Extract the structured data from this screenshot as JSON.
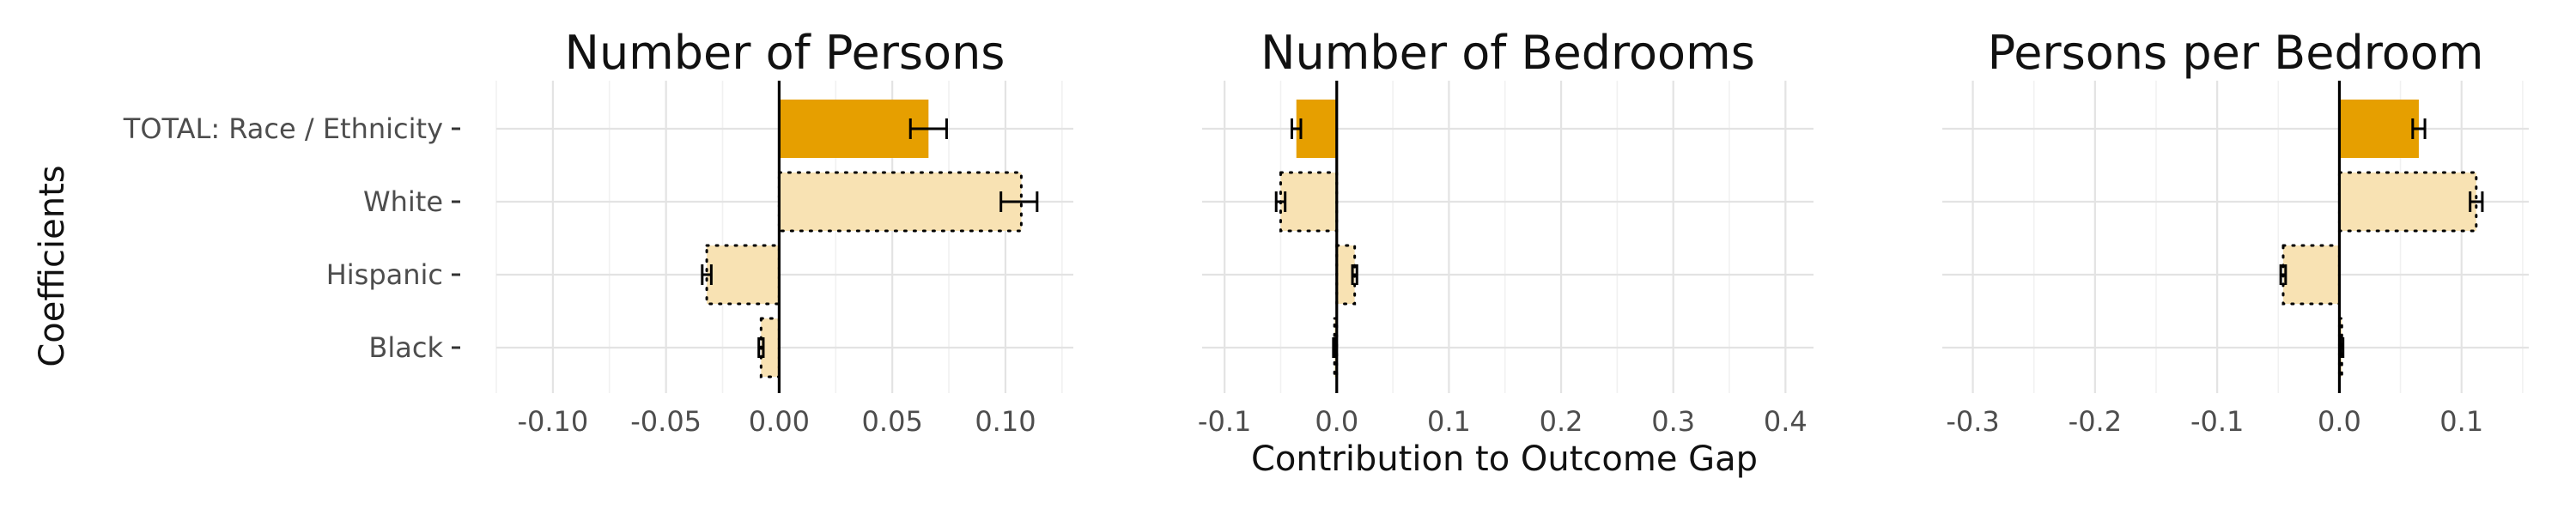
{
  "figure": {
    "ylabel": "Coefficients",
    "xlabel": "Contribution to Outcome Gap",
    "categories": [
      "TOTAL: Race / Ethnicity",
      "White",
      "Hispanic",
      "Black"
    ],
    "colors": {
      "total_fill": "#E69F00",
      "component_fill": "#F8E2B3",
      "error_bar": "#000000",
      "zero_line": "#000000",
      "grid": "#E3E3E3"
    }
  },
  "chart_data": [
    {
      "type": "bar",
      "orientation": "horizontal",
      "title": "Number of Persons",
      "categories": [
        "TOTAL: Race / Ethnicity",
        "White",
        "Hispanic",
        "Black"
      ],
      "values": [
        0.066,
        0.107,
        -0.032,
        -0.008
      ],
      "error_low": [
        0.058,
        0.098,
        -0.034,
        -0.009
      ],
      "error_high": [
        0.074,
        0.114,
        -0.03,
        -0.007
      ],
      "xlim": [
        -0.125,
        0.13
      ],
      "ticks": [
        -0.1,
        -0.05,
        0.0,
        0.05,
        0.1
      ],
      "tick_labels": [
        "-0.10",
        "-0.05",
        "0.00",
        "0.05",
        "0.10"
      ]
    },
    {
      "type": "bar",
      "orientation": "horizontal",
      "title": "Number of Bedrooms",
      "categories": [
        "TOTAL: Race / Ethnicity",
        "White",
        "Hispanic",
        "Black"
      ],
      "values": [
        -0.036,
        -0.05,
        0.016,
        -0.002
      ],
      "error_low": [
        -0.04,
        -0.054,
        0.014,
        -0.003
      ],
      "error_high": [
        -0.032,
        -0.046,
        0.018,
        -0.001
      ],
      "xlim": [
        -0.12,
        0.425
      ],
      "ticks": [
        -0.1,
        0.0,
        0.1,
        0.2,
        0.3,
        0.4
      ],
      "tick_labels": [
        "-0.1",
        "0.0",
        "0.1",
        "0.2",
        "0.3",
        "0.4"
      ]
    },
    {
      "type": "bar",
      "orientation": "horizontal",
      "title": "Persons per Bedroom",
      "categories": [
        "TOTAL: Race / Ethnicity",
        "White",
        "Hispanic",
        "Black"
      ],
      "values": [
        0.065,
        0.112,
        -0.046,
        0.002
      ],
      "error_low": [
        0.06,
        0.107,
        -0.048,
        0.001
      ],
      "error_high": [
        0.07,
        0.117,
        -0.044,
        0.003
      ],
      "xlim": [
        -0.325,
        0.155
      ],
      "ticks": [
        -0.3,
        -0.2,
        -0.1,
        0.0,
        0.1
      ],
      "tick_labels": [
        "-0.3",
        "-0.2",
        "-0.1",
        "0.0",
        "0.1"
      ]
    }
  ]
}
